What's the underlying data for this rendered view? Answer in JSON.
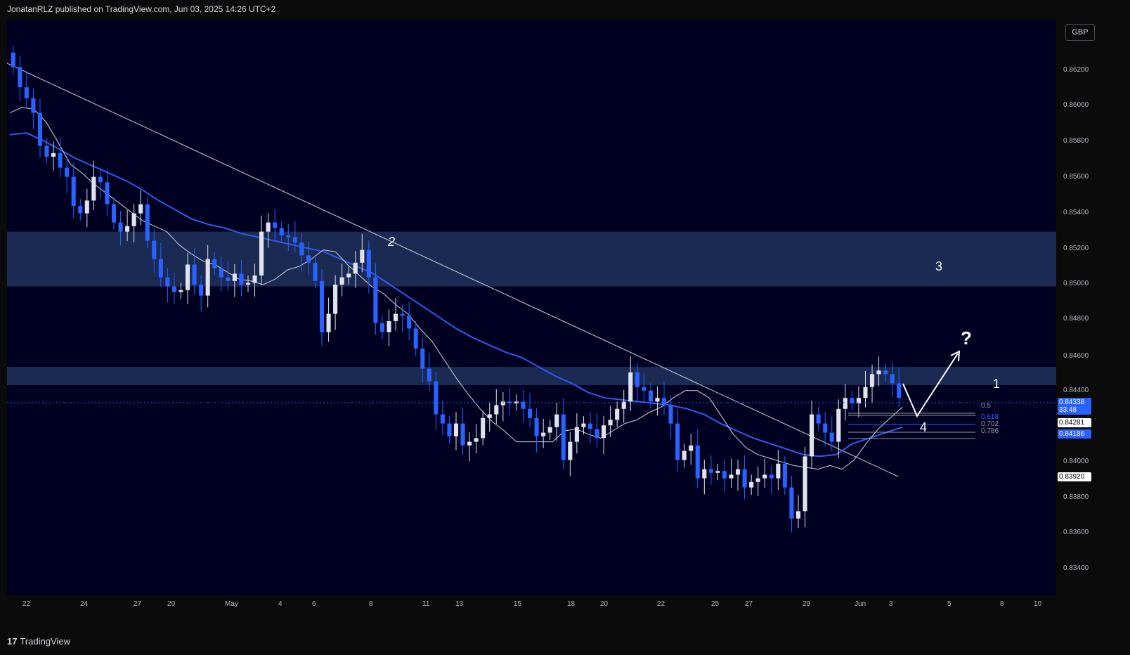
{
  "header": {
    "text": "JonatanRLZ published on TradingView.com, Jun 03, 2025 14:26 UTC+2"
  },
  "footer": {
    "brand": "TradingView",
    "logo_icon": "tradingview-logo-icon"
  },
  "currency": "GBP",
  "colors": {
    "bg": "#000021",
    "bull": "#e0e3eb",
    "bear": "#2962ff",
    "ma_slow": "#2f5bf0",
    "ma_fast": "#d1d4dc",
    "zone": "#1b2a52"
  },
  "price_labels": [
    {
      "value": "0.84338",
      "sub": "33:48",
      "bg": "#2962ff",
      "fg": "#ffffff"
    },
    {
      "value": "0.84281",
      "bg": "#ffffff",
      "fg": "#000000"
    },
    {
      "value": "0.84186",
      "bg": "#2962ff",
      "fg": "#ffffff"
    },
    {
      "value": "0.83920",
      "bg": "#ffffff",
      "fg": "#000000"
    }
  ],
  "annotations": {
    "zone_upper": "3",
    "zone_lower": "1",
    "trend_point": "2",
    "wave_point": "4",
    "question": "?"
  },
  "fib_levels": [
    {
      "label": "0.5",
      "color": "#9598a1"
    },
    {
      "label": "0.618",
      "color": "#2962ff"
    },
    {
      "label": "0.702",
      "color": "#9598a1"
    },
    {
      "label": "0.786",
      "color": "#9598a1"
    }
  ],
  "chart_data": {
    "type": "candlestick",
    "symbol_quote": "GBP",
    "y_ticks": [
      "0.86200",
      "0.86000",
      "0.85800",
      "0.85600",
      "0.85400",
      "0.85200",
      "0.85000",
      "0.84800",
      "0.84600",
      "0.84400",
      "0.84000",
      "0.83800",
      "0.83600",
      "0.83400"
    ],
    "x_ticks": [
      "22",
      "24",
      "27",
      "29",
      "May",
      "4",
      "6",
      "8",
      "11",
      "13",
      "15",
      "18",
      "20",
      "22",
      "25",
      "27",
      "29",
      "Jun",
      "3",
      "5",
      "8",
      "10"
    ],
    "ylim": [
      0.8326,
      0.8641
    ],
    "zones": [
      {
        "from": 0.8495,
        "to": 0.8525
      },
      {
        "from": 0.8441,
        "to": 0.8451
      }
    ],
    "close_series": [
      0.8615,
      0.8604,
      0.8598,
      0.859,
      0.8572,
      0.8566,
      0.8568,
      0.856,
      0.8555,
      0.8539,
      0.8535,
      0.8542,
      0.8555,
      0.8552,
      0.854,
      0.853,
      0.8525,
      0.8528,
      0.8535,
      0.854,
      0.852,
      0.851,
      0.85,
      0.8495,
      0.8492,
      0.8493,
      0.8507,
      0.8496,
      0.849,
      0.851,
      0.8505,
      0.85,
      0.8498,
      0.8502,
      0.8496,
      0.8497,
      0.8501,
      0.8525,
      0.853,
      0.8527,
      0.8523,
      0.8522,
      0.8519,
      0.8512,
      0.8508,
      0.8498,
      0.847,
      0.848,
      0.8496,
      0.85,
      0.8502,
      0.8508,
      0.8515,
      0.85,
      0.8475,
      0.847,
      0.8476,
      0.848,
      0.8479,
      0.8472,
      0.8461,
      0.845,
      0.8443,
      0.8425,
      0.842,
      0.8413,
      0.842,
      0.8408,
      0.841,
      0.8412,
      0.8423,
      0.8425,
      0.843,
      0.8432,
      0.8431,
      0.8432,
      0.8428,
      0.8423,
      0.8413,
      0.8415,
      0.8418,
      0.8425,
      0.84,
      0.841,
      0.8418,
      0.842,
      0.8417,
      0.8412,
      0.8419,
      0.8422,
      0.8428,
      0.8432,
      0.8448,
      0.844,
      0.8438,
      0.8432,
      0.8434,
      0.843,
      0.842,
      0.84,
      0.8405,
      0.8408,
      0.839,
      0.8395,
      0.8393,
      0.8394,
      0.839,
      0.8392,
      0.8395,
      0.8385,
      0.8388,
      0.839,
      0.8392,
      0.839,
      0.8398,
      0.8385,
      0.8368,
      0.8372,
      0.8402,
      0.8425,
      0.842,
      0.8415,
      0.841,
      0.8428,
      0.8434,
      0.8431,
      0.8434,
      0.844,
      0.8447,
      0.8449,
      0.8447,
      0.8442,
      0.8434
    ],
    "ma_fast": [
      0.859,
      0.8593,
      0.8592,
      0.8585,
      0.8574,
      0.8562,
      0.8557,
      0.8551,
      0.8546,
      0.8541,
      0.8536,
      0.8531,
      0.8528,
      0.8525,
      0.8518,
      0.8513,
      0.8509,
      0.8507,
      0.8503,
      0.8499,
      0.8498,
      0.8496,
      0.8499,
      0.8504,
      0.8506,
      0.851,
      0.8515,
      0.8514,
      0.8507,
      0.8501,
      0.8495,
      0.8491,
      0.8485,
      0.848,
      0.8472,
      0.8465,
      0.8455,
      0.8445,
      0.8436,
      0.8428,
      0.8421,
      0.8416,
      0.841,
      0.841,
      0.841,
      0.841,
      0.8416,
      0.8417,
      0.8414,
      0.8412,
      0.8416,
      0.842,
      0.8422,
      0.8426,
      0.8429,
      0.8434,
      0.8438,
      0.8438,
      0.8434,
      0.8424,
      0.8414,
      0.8407,
      0.8403,
      0.8401,
      0.8399,
      0.8397,
      0.8396,
      0.8395,
      0.8397,
      0.8395,
      0.84,
      0.8409,
      0.8417,
      0.8423,
      0.8429
    ],
    "ma_slow": [
      0.8578,
      0.8579,
      0.8575,
      0.857,
      0.8565,
      0.8561,
      0.8557,
      0.8553,
      0.8548,
      0.8542,
      0.8537,
      0.8532,
      0.8529,
      0.8527,
      0.8524,
      0.8522,
      0.852,
      0.8518,
      0.8516,
      0.8514,
      0.851,
      0.8506,
      0.8502,
      0.8496,
      0.849,
      0.8484,
      0.8478,
      0.8472,
      0.8467,
      0.8463,
      0.8459,
      0.8456,
      0.8451,
      0.8446,
      0.8442,
      0.8437,
      0.8434,
      0.8433,
      0.8432,
      0.8431,
      0.843,
      0.8428,
      0.8425,
      0.842,
      0.8416,
      0.8412,
      0.8409,
      0.8406,
      0.8403,
      0.8402,
      0.8403,
      0.8409,
      0.8412,
      0.8415,
      0.8418
    ]
  }
}
